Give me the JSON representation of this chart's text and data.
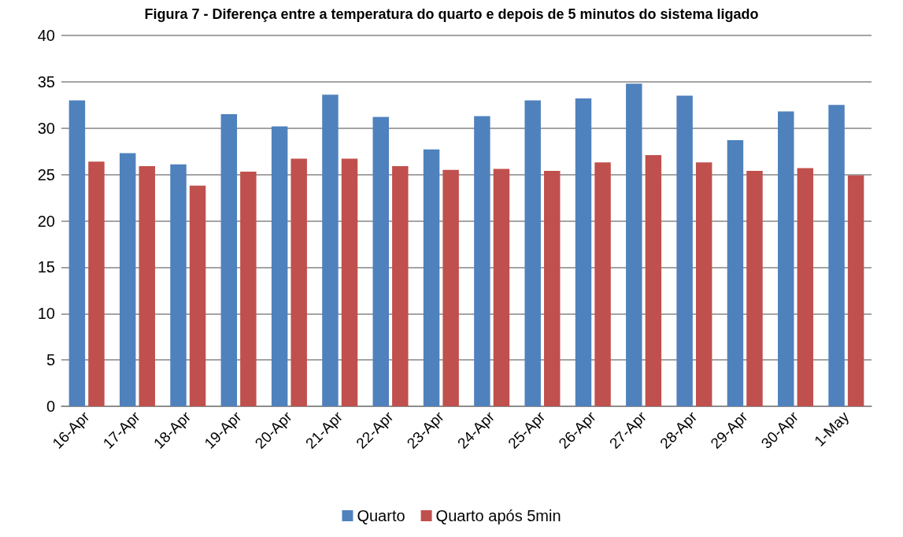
{
  "chart_data": {
    "type": "bar",
    "title": "Figura 7 - Diferença entre a temperatura do quarto e depois de 5 minutos do sistema ligado",
    "categories": [
      "16-Apr",
      "17-Apr",
      "18-Apr",
      "19-Apr",
      "20-Apr",
      "21-Apr",
      "22-Apr",
      "23-Apr",
      "24-Apr",
      "25-Apr",
      "26-Apr",
      "27-Apr",
      "28-Apr",
      "29-Apr",
      "30-Apr",
      "1-May"
    ],
    "series": [
      {
        "name": "Quarto",
        "color": "#4f81bd",
        "values": [
          33.0,
          27.3,
          26.1,
          31.5,
          30.2,
          33.6,
          31.2,
          27.7,
          31.3,
          33.0,
          33.2,
          34.8,
          33.5,
          28.7,
          31.8,
          32.5
        ]
      },
      {
        "name": "Quarto após 5min",
        "color": "#c0504d",
        "values": [
          26.4,
          25.9,
          23.8,
          25.3,
          26.7,
          26.7,
          25.9,
          25.5,
          25.6,
          25.4,
          26.3,
          27.1,
          26.3,
          25.4,
          25.7,
          24.9
        ]
      }
    ],
    "ylim": [
      0,
      40
    ],
    "yticks": [
      0,
      5,
      10,
      15,
      20,
      25,
      30,
      35,
      40
    ],
    "grid": "y",
    "legend": "bottom"
  }
}
